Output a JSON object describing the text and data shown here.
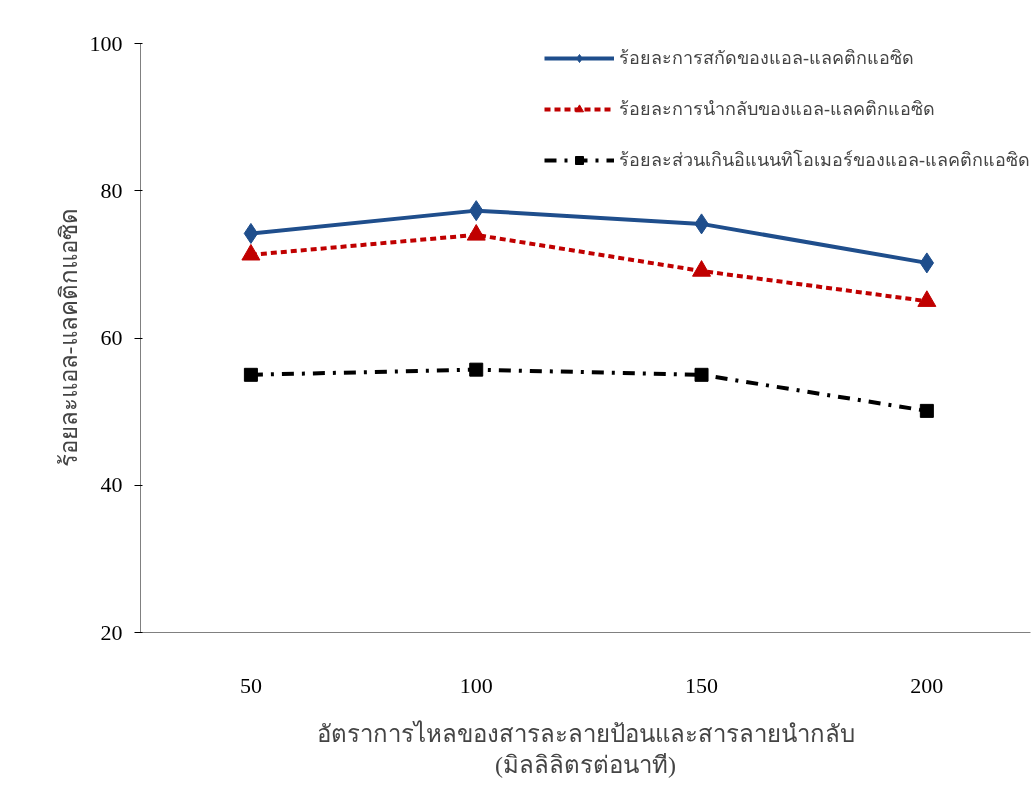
{
  "chart_data": {
    "type": "line",
    "categories": [
      "50",
      "100",
      "150",
      "200"
    ],
    "xlabel": "อัตราการไหลของสารละลายป้อนและสารลายนำกลับ\n(มิลลิลิตรต่อนาที)",
    "ylabel": "ร้อยละแอล-แลคติกแอซิด",
    "ylim": [
      20,
      100
    ],
    "yticks": [
      20,
      40,
      60,
      80,
      100
    ],
    "grid": false,
    "legend": "top right",
    "series": [
      {
        "name": "ร้อยละการสกัดของแอล-แลคติกแอซิด",
        "color": "#1f4e8c",
        "marker": "diamond",
        "line_style": "solid",
        "values": [
          74.2,
          77.3,
          75.5,
          70.2
        ]
      },
      {
        "name": "ร้อยละการนำกลับของแอล-แลคติกแอซิด",
        "color": "#c00000",
        "marker": "triangle",
        "line_style": "dashed",
        "values": [
          71.3,
          74.0,
          69.1,
          65.0
        ]
      },
      {
        "name": "ร้อยละส่วนเกินอิแนนทิโอเมอร์ของแอล-แลคติกแอซิด",
        "color": "#000000",
        "marker": "square",
        "line_style": "dashdot",
        "values": [
          55.0,
          55.7,
          55.0,
          50.1
        ]
      }
    ]
  }
}
